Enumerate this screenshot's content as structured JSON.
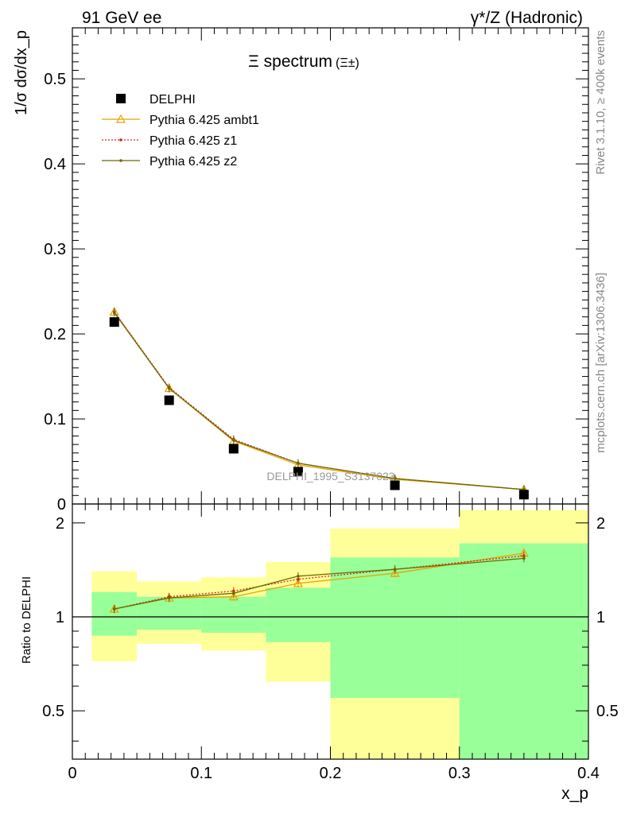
{
  "header": {
    "left": "91 GeV ee",
    "right": "γ*/Z (Hadronic)"
  },
  "side_labels": {
    "rivet": "Rivet 3.1.10, ≥ 400k events",
    "mcplots": "mcplots.cern.ch [arXiv:1306.3436]"
  },
  "chart_data": [
    {
      "type": "scatter",
      "panel": "main",
      "title": "Ξ spectrum",
      "title_suffix": "(Ξ±)",
      "ylabel": "1/σ dσ/dx_p",
      "ylim": [
        0,
        0.56
      ],
      "yticks": [
        "0",
        "0.1",
        "0.2",
        "0.3",
        "0.4",
        "0.5"
      ],
      "watermark": "DELPHI_1995_S3137023",
      "legend_position": "top-left",
      "series": [
        {
          "name": "DELPHI",
          "style": "marker",
          "color": "#000000",
          "x": [
            0.0325,
            0.075,
            0.125,
            0.175,
            0.25,
            0.35
          ],
          "y": [
            0.214,
            0.122,
            0.065,
            0.038,
            0.022,
            0.011
          ]
        },
        {
          "name": "Pythia 6.425 ambt1",
          "style": "line-triangle",
          "color": "#e8a000",
          "x": [
            0.0325,
            0.075,
            0.125,
            0.175,
            0.25,
            0.35
          ],
          "y": [
            0.226,
            0.136,
            0.074,
            0.046,
            0.029,
            0.017
          ]
        },
        {
          "name": "Pythia 6.425 z1",
          "style": "dotted",
          "color": "#dd2222",
          "x": [
            0.0325,
            0.075,
            0.125,
            0.175,
            0.25,
            0.35
          ],
          "y": [
            0.226,
            0.137,
            0.076,
            0.048,
            0.03,
            0.017
          ]
        },
        {
          "name": "Pythia 6.425 z2",
          "style": "line-dot",
          "color": "#6b6b00",
          "x": [
            0.0325,
            0.075,
            0.125,
            0.175,
            0.25,
            0.35
          ],
          "y": [
            0.225,
            0.136,
            0.075,
            0.048,
            0.03,
            0.017
          ]
        }
      ]
    },
    {
      "type": "line",
      "panel": "ratio",
      "ylabel": "Ratio to DELPHI",
      "ylim": [
        0.35,
        2.3
      ],
      "yticks": [
        "0.5",
        "1",
        "2"
      ],
      "xlabel": "x_p",
      "xlim": [
        0,
        0.4
      ],
      "xticks": [
        "0",
        "0.1",
        "0.2",
        "0.3",
        "0.4"
      ],
      "bands": [
        {
          "x0": 0.015,
          "x1": 0.05,
          "green": [
            0.87,
            1.2
          ],
          "yellow": [
            0.72,
            1.4
          ]
        },
        {
          "x0": 0.05,
          "x1": 0.1,
          "green": [
            0.91,
            1.16
          ],
          "yellow": [
            0.82,
            1.3
          ]
        },
        {
          "x0": 0.1,
          "x1": 0.15,
          "green": [
            0.89,
            1.16
          ],
          "yellow": [
            0.78,
            1.34
          ]
        },
        {
          "x0": 0.15,
          "x1": 0.2,
          "green": [
            0.83,
            1.24
          ],
          "yellow": [
            0.62,
            1.5
          ]
        },
        {
          "x0": 0.2,
          "x1": 0.3,
          "green": [
            0.55,
            1.55
          ],
          "yellow": [
            0.35,
            1.92
          ]
        },
        {
          "x0": 0.3,
          "x1": 0.4,
          "green": [
            0.35,
            1.72
          ],
          "yellow": [
            0.35,
            2.2
          ]
        }
      ],
      "series": [
        {
          "name": "Pythia 6.425 ambt1",
          "style": "line-triangle",
          "color": "#e8a000",
          "x": [
            0.0325,
            0.075,
            0.125,
            0.175,
            0.25,
            0.35
          ],
          "y": [
            1.06,
            1.15,
            1.16,
            1.28,
            1.38,
            1.6
          ]
        },
        {
          "name": "Pythia 6.425 z1",
          "style": "dotted",
          "color": "#dd2222",
          "x": [
            0.0325,
            0.075,
            0.125,
            0.175,
            0.25,
            0.35
          ],
          "y": [
            1.06,
            1.16,
            1.21,
            1.32,
            1.42,
            1.57
          ]
        },
        {
          "name": "Pythia 6.425 z2",
          "style": "line-dot",
          "color": "#6b6b00",
          "x": [
            0.0325,
            0.075,
            0.125,
            0.175,
            0.25,
            0.35
          ],
          "y": [
            1.06,
            1.15,
            1.19,
            1.35,
            1.42,
            1.54
          ]
        }
      ]
    }
  ]
}
